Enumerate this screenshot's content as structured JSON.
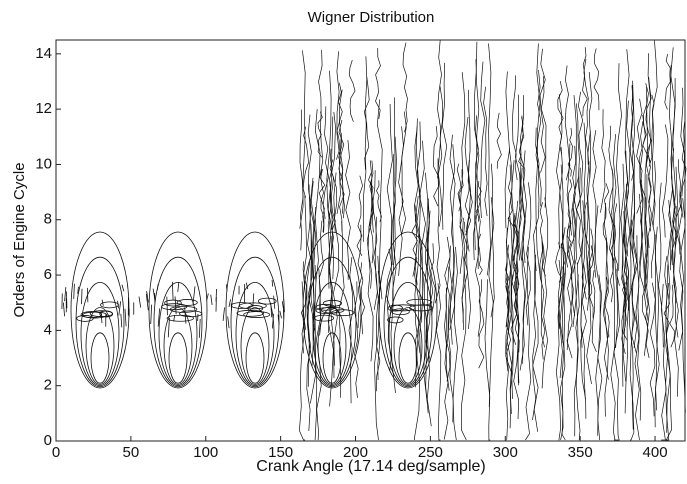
{
  "chart_data": {
    "type": "contour",
    "title": "Wigner Distribution",
    "x_label": "Crank Angle (17.14 deg/sample)",
    "y_label": "Orders of Engine Cycle",
    "xlim": [
      0,
      420
    ],
    "xticks": [
      0,
      50,
      100,
      150,
      200,
      250,
      300,
      350,
      400
    ],
    "ylim": [
      0,
      14.5
    ],
    "yticks": [
      0,
      2,
      4,
      6,
      8,
      10,
      12,
      14
    ],
    "grid": false,
    "color": "#111111"
  }
}
